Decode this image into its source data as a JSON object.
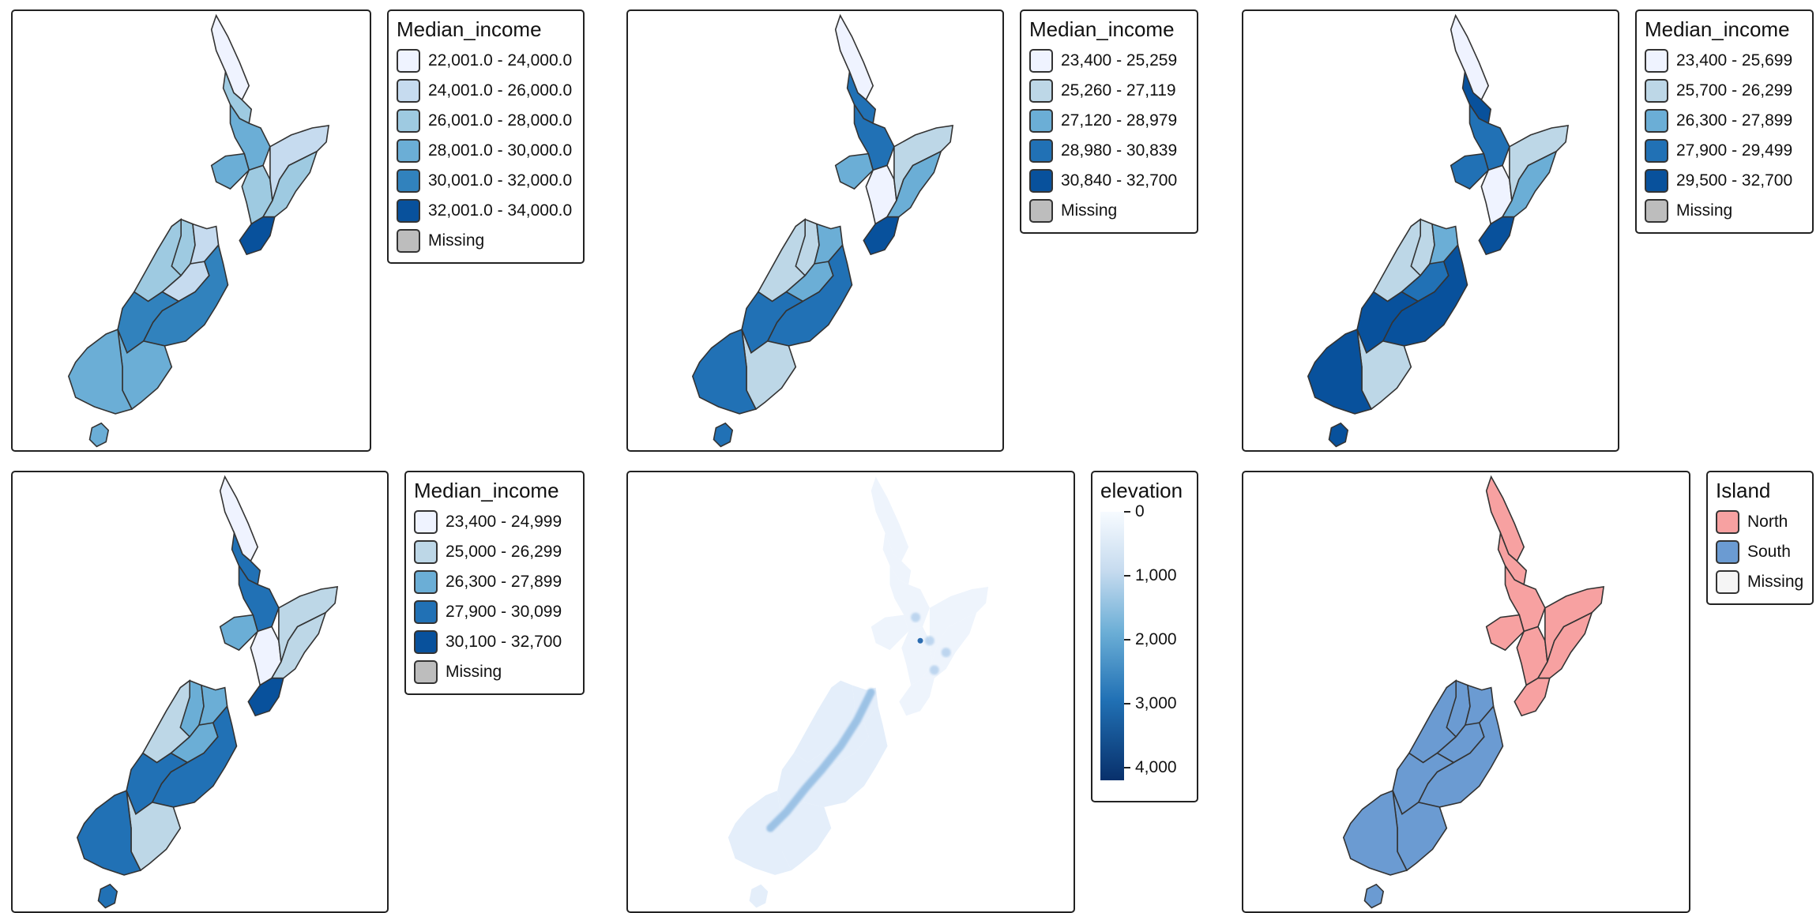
{
  "maps": [
    {
      "legend_title": "Median_income",
      "classes": [
        "22,001.0 - 24,000.0",
        "24,001.0 - 26,000.0",
        "26,001.0 - 28,000.0",
        "28,001.0 - 30,000.0",
        "30,001.0 - 32,000.0",
        "32,001.0 - 34,000.0",
        "Missing"
      ],
      "swatch_colors": [
        "#eff3ff",
        "#c6dbef",
        "#9ecae1",
        "#6baed6",
        "#3182bd",
        "#08519c",
        "#bdbdbd"
      ],
      "region_class": [
        0,
        2,
        3,
        3,
        2,
        1,
        2,
        5,
        2,
        1,
        2,
        1,
        4,
        4,
        3,
        3
      ]
    },
    {
      "legend_title": "Median_income",
      "classes": [
        "23,400 - 25,259",
        "25,260 - 27,119",
        "27,120 - 28,979",
        "28,980 - 30,839",
        "30,840 - 32,700",
        "Missing"
      ],
      "swatch_colors": [
        "#eff3ff",
        "#bdd7e7",
        "#6baed6",
        "#2171b5",
        "#08519c",
        "#bdbdbd"
      ],
      "region_class": [
        0,
        3,
        3,
        2,
        0,
        1,
        2,
        4,
        1,
        2,
        1,
        2,
        3,
        3,
        1,
        3
      ]
    },
    {
      "legend_title": "Median_income",
      "classes": [
        "23,400 - 25,699",
        "25,700 - 26,299",
        "26,300 - 27,899",
        "27,900 - 29,499",
        "29,500 - 32,700",
        "Missing"
      ],
      "swatch_colors": [
        "#eff3ff",
        "#bdd7e7",
        "#6baed6",
        "#2171b5",
        "#08519c",
        "#bdbdbd"
      ],
      "region_class": [
        0,
        4,
        3,
        3,
        0,
        1,
        2,
        4,
        1,
        2,
        1,
        3,
        4,
        4,
        1,
        4
      ]
    },
    {
      "legend_title": "Median_income",
      "classes": [
        "23,400 - 24,999",
        "25,000 - 26,299",
        "26,300 - 27,899",
        "27,900 - 30,099",
        "30,100 - 32,700",
        "Missing"
      ],
      "swatch_colors": [
        "#eff3ff",
        "#bdd7e7",
        "#6baed6",
        "#2171b5",
        "#08519c",
        "#bdbdbd"
      ],
      "region_class": [
        0,
        3,
        3,
        2,
        0,
        1,
        1,
        4,
        2,
        2,
        1,
        2,
        3,
        3,
        1,
        3
      ]
    },
    {
      "legend_title": "elevation",
      "scale_labels": [
        "0",
        "1,000",
        "2,000",
        "3,000",
        "4,000"
      ],
      "scale_values": [
        0,
        1000,
        2000,
        3000,
        4000
      ],
      "scale_max": 4200
    },
    {
      "legend_title": "Island",
      "classes": [
        "North",
        "South",
        "Missing"
      ],
      "swatch_colors": [
        "#f7a1a1",
        "#6b9bd2",
        "#f5f5f5"
      ],
      "region_island": [
        "North",
        "North",
        "North",
        "North",
        "North",
        "North",
        "North",
        "North",
        "South",
        "South",
        "South",
        "South",
        "South",
        "South",
        "South",
        "South"
      ]
    }
  ]
}
